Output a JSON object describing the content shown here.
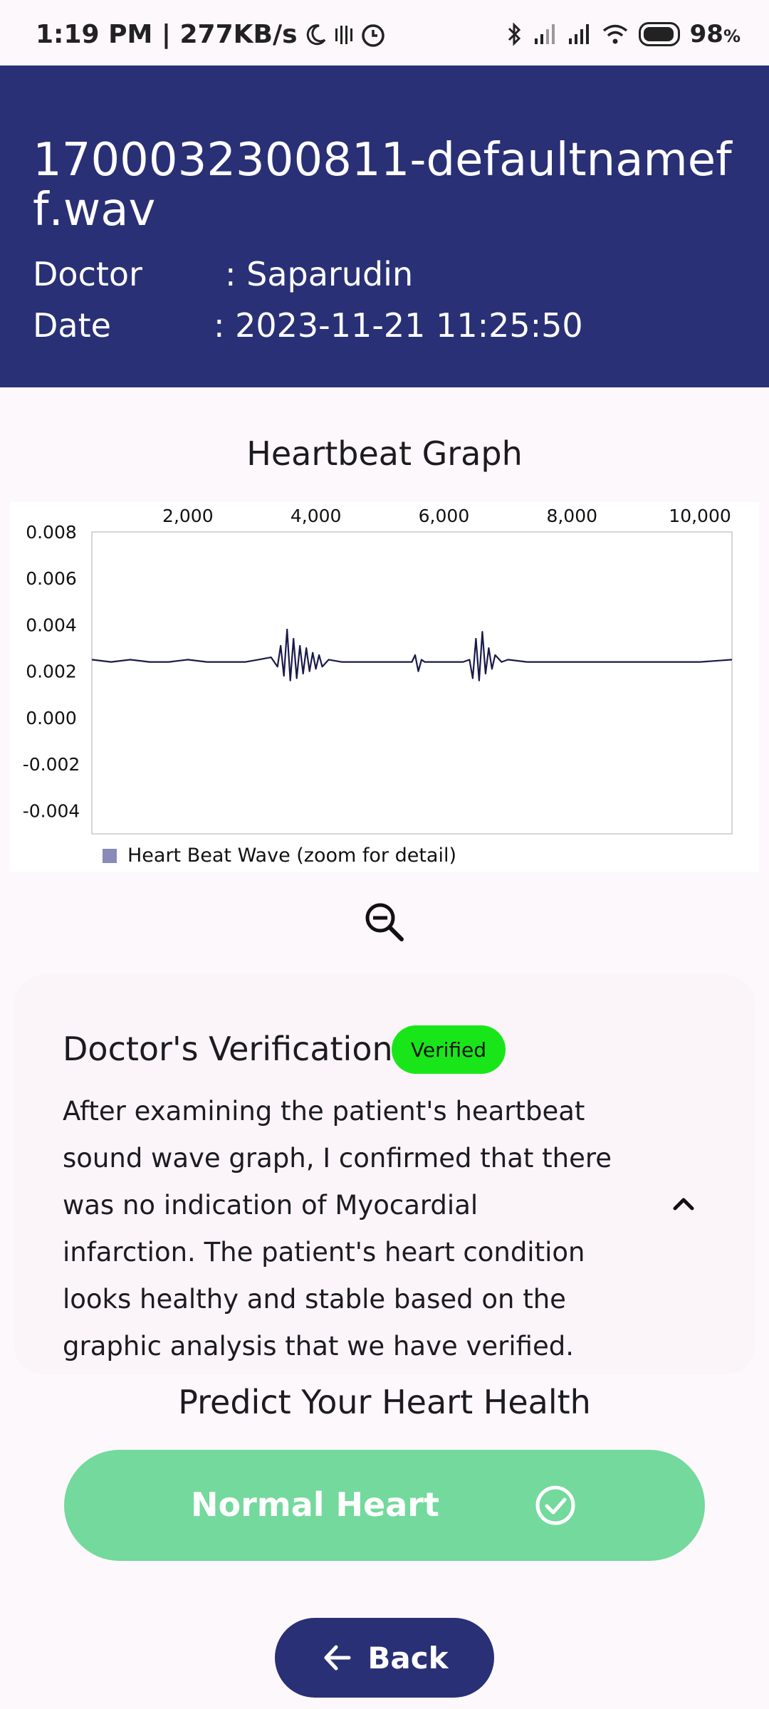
{
  "status_bar": {
    "time_speed": "1:19 PM | 277KB/s",
    "battery": "98",
    "battery_unit": "%",
    "icons": [
      "moon-icon",
      "vibrate-icon",
      "alarm-icon",
      "bluetooth-icon",
      "signal-icon",
      "signal-icon",
      "wifi-icon",
      "battery-icon"
    ]
  },
  "header": {
    "file_title": "1700032300811-defaultnameff.wav",
    "doctor_label": "Doctor",
    "doctor_value": ": Saparudin",
    "date_label": "Date",
    "date_value": ": 2023-11-21 11:25:50",
    "bg_color": "#2a3075"
  },
  "graph": {
    "title": "Heartbeat Graph",
    "legend": "Heart Beat Wave (zoom for detail)",
    "zoom_icon": "zoom-out-icon"
  },
  "chart_data": {
    "type": "line",
    "x_ticks": [
      "2,000",
      "4,000",
      "6,000",
      "8,000",
      "10,000"
    ],
    "y_ticks": [
      "0.008",
      "0.006",
      "0.004",
      "0.002",
      "0.000",
      "-0.002",
      "-0.004"
    ],
    "xlim": [
      500,
      10500
    ],
    "ylim": [
      -0.005,
      0.008
    ],
    "grid": false,
    "legend_placement": "bottom-left",
    "series": [
      {
        "name": "Heart Beat Wave (zoom for detail)",
        "color": "#1a1a4a",
        "x": [
          500,
          800,
          1100,
          1400,
          1700,
          2000,
          2300,
          2600,
          2900,
          3100,
          3300,
          3400,
          3450,
          3500,
          3550,
          3600,
          3650,
          3700,
          3750,
          3800,
          3850,
          3900,
          3950,
          4000,
          4050,
          4100,
          4200,
          4400,
          4700,
          5000,
          5300,
          5500,
          5550,
          5600,
          5650,
          5700,
          6000,
          6300,
          6400,
          6450,
          6500,
          6550,
          6600,
          6650,
          6700,
          6750,
          6800,
          6900,
          7000,
          7300,
          7600,
          7900,
          8200,
          8500,
          8800,
          9100,
          9400,
          9700,
          10000,
          10500
        ],
        "y": [
          0.0025,
          0.0024,
          0.0025,
          0.0024,
          0.0024,
          0.0025,
          0.0024,
          0.0024,
          0.0024,
          0.0025,
          0.0026,
          0.0022,
          0.0031,
          0.0018,
          0.0038,
          0.0016,
          0.0034,
          0.0017,
          0.0031,
          0.0019,
          0.003,
          0.002,
          0.0028,
          0.0021,
          0.0027,
          0.0022,
          0.0025,
          0.0024,
          0.0024,
          0.0024,
          0.0024,
          0.0024,
          0.0027,
          0.002,
          0.0025,
          0.0024,
          0.0024,
          0.0024,
          0.0025,
          0.0017,
          0.0034,
          0.0016,
          0.0037,
          0.0019,
          0.003,
          0.0021,
          0.0027,
          0.0024,
          0.0025,
          0.0024,
          0.0024,
          0.0024,
          0.0024,
          0.0024,
          0.0024,
          0.0024,
          0.0024,
          0.0024,
          0.0024,
          0.0025
        ]
      }
    ]
  },
  "verification": {
    "title": "Doctor's Verification",
    "badge": "Verified",
    "badge_color": "#19e619",
    "text": "After examining the patient's heartbeat sound wave graph, I confirmed that there was no indication of Myocardial infarction. The patient's heart condition looks healthy and stable based on the graphic analysis that we have verified."
  },
  "prediction": {
    "title": "Predict Your Heart Health",
    "result": "Normal Heart",
    "result_color": "#74d99c"
  },
  "back": {
    "label": "Back"
  }
}
